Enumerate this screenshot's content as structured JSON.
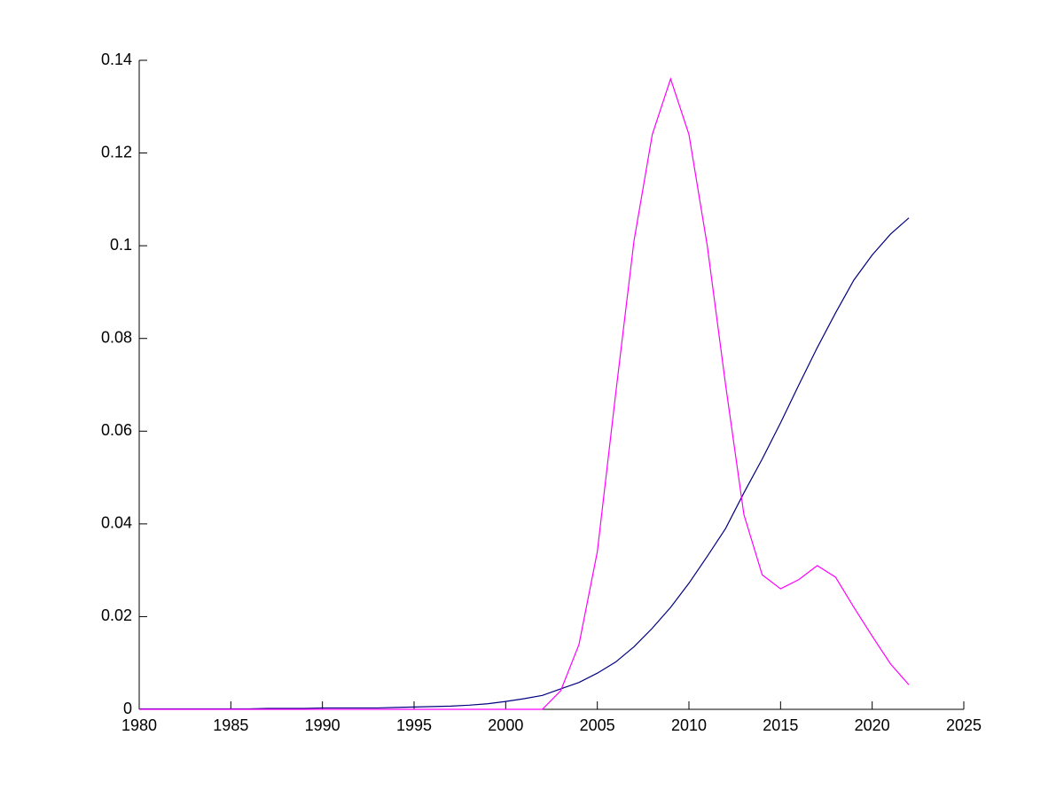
{
  "chart_data": {
    "type": "line",
    "x": [
      1980,
      1981,
      1982,
      1983,
      1984,
      1985,
      1986,
      1987,
      1988,
      1989,
      1990,
      1991,
      1992,
      1993,
      1994,
      1995,
      1996,
      1997,
      1998,
      1999,
      2000,
      2001,
      2002,
      2003,
      2004,
      2005,
      2006,
      2007,
      2008,
      2009,
      2010,
      2011,
      2012,
      2013,
      2014,
      2015,
      2016,
      2017,
      2018,
      2019,
      2020,
      2021,
      2022
    ],
    "series": [
      {
        "color": "#000080",
        "values": [
          0.0001,
          0.0001,
          0.0001,
          0.0001,
          0.0001,
          0.0001,
          0.0001,
          0.0002,
          0.0002,
          0.0002,
          0.0003,
          0.0003,
          0.0003,
          0.0003,
          0.0004,
          0.0005,
          0.0006,
          0.0007,
          0.0009,
          0.0012,
          0.0017,
          0.0023,
          0.003,
          0.0044,
          0.0058,
          0.0078,
          0.0102,
          0.0135,
          0.0175,
          0.022,
          0.0272,
          0.033,
          0.039,
          0.0467,
          0.054,
          0.0618,
          0.07,
          0.078,
          0.0855,
          0.0926,
          0.098,
          0.1025,
          0.106
        ]
      },
      {
        "color": "#ff00ff",
        "values": [
          0,
          0,
          0,
          0,
          0,
          0,
          0,
          0,
          0,
          0,
          0,
          0,
          0,
          0,
          0,
          0,
          0,
          0,
          0,
          0,
          0,
          0,
          0,
          0.004,
          0.014,
          0.034,
          0.068,
          0.101,
          0.124,
          0.136,
          0.124,
          0.1,
          0.07,
          0.042,
          0.029,
          0.026,
          0.028,
          0.031,
          0.0285,
          0.022,
          0.0158,
          0.0098,
          0.0053
        ]
      }
    ],
    "xlim": [
      1980,
      2025
    ],
    "xticks": [
      1980,
      1985,
      1990,
      1995,
      2000,
      2005,
      2010,
      2015,
      2020,
      2025
    ],
    "ylim": [
      0,
      0.14
    ],
    "yticks": [
      0,
      0.02,
      0.04,
      0.06,
      0.08,
      0.1,
      0.12,
      0.14
    ]
  }
}
